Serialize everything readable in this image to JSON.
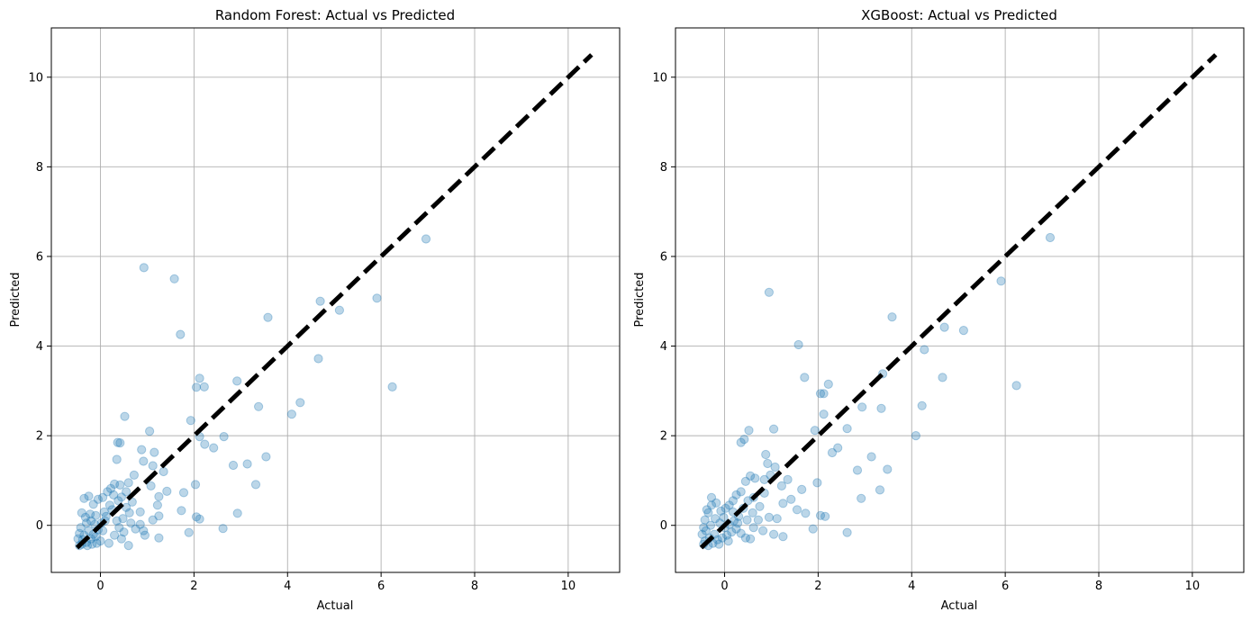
{
  "figure": {
    "marker_color": "#1f77b4",
    "line_color": "#000000",
    "grid": true
  },
  "chart_data": [
    {
      "type": "scatter",
      "title": "Random Forest: Actual vs Predicted",
      "xlabel": "Actual",
      "ylabel": "Predicted",
      "xlim": [
        -1.05,
        11.1
      ],
      "ylim": [
        -1.05,
        11.1
      ],
      "xticks": [
        0,
        2,
        4,
        6,
        8,
        10
      ],
      "yticks": [
        0,
        2,
        4,
        6,
        8,
        10
      ],
      "xtick_labels": [
        "0",
        "2",
        "4",
        "6",
        "8",
        "10"
      ],
      "ytick_labels": [
        "0",
        "2",
        "4",
        "6",
        "8",
        "10"
      ],
      "reference_line": {
        "from": [
          -0.5,
          -0.5
        ],
        "to": [
          10.5,
          10.5
        ],
        "style": "dashed"
      },
      "points": [
        [
          0.93,
          5.75
        ],
        [
          1.58,
          5.5
        ],
        [
          1.71,
          4.26
        ],
        [
          3.58,
          4.64
        ],
        [
          4.7,
          5.0
        ],
        [
          5.11,
          4.8
        ],
        [
          5.91,
          5.07
        ],
        [
          6.96,
          6.39
        ],
        [
          6.24,
          3.09
        ],
        [
          4.66,
          3.72
        ],
        [
          4.27,
          2.74
        ],
        [
          4.09,
          2.48
        ],
        [
          3.38,
          2.65
        ],
        [
          2.92,
          3.22
        ],
        [
          3.54,
          1.53
        ],
        [
          3.14,
          1.37
        ],
        [
          2.84,
          1.34
        ],
        [
          3.32,
          0.91
        ],
        [
          2.93,
          0.27
        ],
        [
          2.62,
          -0.07
        ],
        [
          2.64,
          1.98
        ],
        [
          2.42,
          1.73
        ],
        [
          2.23,
          1.81
        ],
        [
          2.12,
          3.28
        ],
        [
          2.05,
          3.08
        ],
        [
          2.22,
          3.09
        ],
        [
          1.93,
          2.34
        ],
        [
          2.12,
          1.98
        ],
        [
          1.78,
          0.73
        ],
        [
          1.73,
          0.33
        ],
        [
          1.89,
          -0.16
        ],
        [
          2.05,
          0.19
        ],
        [
          2.12,
          0.14
        ],
        [
          2.03,
          0.91
        ],
        [
          1.05,
          2.1
        ],
        [
          0.52,
          2.43
        ],
        [
          0.42,
          1.84
        ],
        [
          0.37,
          1.85
        ],
        [
          0.35,
          1.47
        ],
        [
          0.88,
          1.69
        ],
        [
          0.92,
          1.43
        ],
        [
          1.15,
          1.63
        ],
        [
          1.12,
          1.33
        ],
        [
          1.35,
          1.2
        ],
        [
          1.08,
          0.88
        ],
        [
          1.42,
          0.76
        ],
        [
          1.25,
          0.64
        ],
        [
          1.22,
          0.45
        ],
        [
          1.25,
          0.21
        ],
        [
          1.12,
          0.12
        ],
        [
          1.25,
          -0.28
        ],
        [
          0.95,
          -0.22
        ],
        [
          0.92,
          -0.12
        ],
        [
          0.85,
          0.3
        ],
        [
          0.72,
          1.12
        ],
        [
          0.6,
          0.95
        ],
        [
          0.55,
          0.75
        ],
        [
          0.45,
          0.63
        ],
        [
          0.38,
          0.55
        ],
        [
          0.3,
          0.92
        ],
        [
          0.22,
          0.82
        ],
        [
          0.15,
          0.75
        ],
        [
          0.05,
          0.62
        ],
        [
          -0.05,
          0.58
        ],
        [
          -0.15,
          0.47
        ],
        [
          -0.25,
          0.65
        ],
        [
          -0.35,
          0.6
        ],
        [
          -0.4,
          0.28
        ],
        [
          0.6,
          -0.45
        ],
        [
          0.45,
          -0.3
        ],
        [
          0.3,
          -0.22
        ],
        [
          0.18,
          -0.4
        ],
        [
          0.05,
          -0.12
        ],
        [
          0.12,
          0.2
        ],
        [
          0.25,
          0.35
        ],
        [
          0.35,
          0.1
        ],
        [
          0.48,
          0.15
        ],
        [
          0.65,
          0.05
        ],
        [
          0.75,
          -0.08
        ],
        [
          0.85,
          0.02
        ],
        [
          0.55,
          0.4
        ],
        [
          0.68,
          0.52
        ],
        [
          0.2,
          0.45
        ],
        [
          0.08,
          0.3
        ],
        [
          -0.1,
          0.22
        ],
        [
          -0.2,
          0.1
        ],
        [
          -0.3,
          0.05
        ],
        [
          -0.42,
          -0.05
        ],
        [
          -0.45,
          -0.18
        ],
        [
          -0.48,
          -0.3
        ],
        [
          -0.4,
          -0.42
        ],
        [
          -0.3,
          -0.38
        ],
        [
          -0.2,
          -0.3
        ],
        [
          -0.1,
          -0.25
        ],
        [
          0.0,
          -0.35
        ],
        [
          -0.05,
          -0.1
        ],
        [
          -0.15,
          -0.2
        ],
        [
          -0.25,
          -0.12
        ],
        [
          -0.35,
          -0.22
        ],
        [
          -0.45,
          -0.45
        ],
        [
          -0.38,
          -0.32
        ],
        [
          -0.28,
          -0.45
        ],
        [
          -0.18,
          -0.42
        ],
        [
          -0.08,
          -0.4
        ],
        [
          0.02,
          0.05
        ],
        [
          0.1,
          0.1
        ],
        [
          -0.32,
          0.18
        ],
        [
          -0.22,
          0.25
        ],
        [
          -0.12,
          0.02
        ],
        [
          0.4,
          -0.05
        ],
        [
          0.5,
          -0.15
        ],
        [
          0.28,
          0.68
        ],
        [
          0.42,
          0.9
        ],
        [
          0.62,
          0.28
        ]
      ]
    },
    {
      "type": "scatter",
      "title": "XGBoost: Actual vs Predicted",
      "xlabel": "Actual",
      "ylabel": "Predicted",
      "xlim": [
        -1.05,
        11.1
      ],
      "ylim": [
        -1.05,
        11.1
      ],
      "xticks": [
        0,
        2,
        4,
        6,
        8,
        10
      ],
      "yticks": [
        0,
        2,
        4,
        6,
        8,
        10
      ],
      "xtick_labels": [
        "0",
        "2",
        "4",
        "6",
        "8",
        "10"
      ],
      "ytick_labels": [
        "0",
        "2",
        "4",
        "6",
        "8",
        "10"
      ],
      "reference_line": {
        "from": [
          -0.5,
          -0.5
        ],
        "to": [
          10.5,
          10.5
        ],
        "style": "dashed"
      },
      "points": [
        [
          0.95,
          5.2
        ],
        [
          1.58,
          4.03
        ],
        [
          1.71,
          3.3
        ],
        [
          3.58,
          4.65
        ],
        [
          4.7,
          4.42
        ],
        [
          5.11,
          4.35
        ],
        [
          5.91,
          5.45
        ],
        [
          6.96,
          6.42
        ],
        [
          6.24,
          3.12
        ],
        [
          4.66,
          3.3
        ],
        [
          4.27,
          3.92
        ],
        [
          4.22,
          2.67
        ],
        [
          4.09,
          2.0
        ],
        [
          3.38,
          3.38
        ],
        [
          3.14,
          1.53
        ],
        [
          2.94,
          2.64
        ],
        [
          3.35,
          2.61
        ],
        [
          3.48,
          1.25
        ],
        [
          2.84,
          1.23
        ],
        [
          2.92,
          0.6
        ],
        [
          3.32,
          0.79
        ],
        [
          2.62,
          2.16
        ],
        [
          2.42,
          1.73
        ],
        [
          2.12,
          2.94
        ],
        [
          2.05,
          2.94
        ],
        [
          2.22,
          3.15
        ],
        [
          2.12,
          2.48
        ],
        [
          1.93,
          2.12
        ],
        [
          2.3,
          1.62
        ],
        [
          2.15,
          0.2
        ],
        [
          2.05,
          0.22
        ],
        [
          1.98,
          0.95
        ],
        [
          2.62,
          -0.16
        ],
        [
          1.89,
          -0.08
        ],
        [
          1.73,
          0.27
        ],
        [
          1.65,
          0.8
        ],
        [
          1.42,
          0.58
        ],
        [
          1.22,
          0.88
        ],
        [
          1.25,
          0.49
        ],
        [
          1.05,
          2.15
        ],
        [
          0.52,
          2.12
        ],
        [
          0.42,
          1.92
        ],
        [
          0.35,
          1.85
        ],
        [
          0.88,
          1.58
        ],
        [
          0.92,
          1.38
        ],
        [
          1.08,
          1.3
        ],
        [
          0.98,
          1.12
        ],
        [
          0.85,
          1.02
        ],
        [
          0.65,
          1.05
        ],
        [
          0.55,
          1.1
        ],
        [
          0.45,
          0.98
        ],
        [
          0.35,
          0.75
        ],
        [
          0.25,
          0.68
        ],
        [
          0.18,
          0.55
        ],
        [
          0.1,
          0.45
        ],
        [
          0.02,
          0.38
        ],
        [
          -0.08,
          0.32
        ],
        [
          -0.18,
          0.5
        ],
        [
          -0.28,
          0.45
        ],
        [
          -0.35,
          0.28
        ],
        [
          -0.42,
          0.12
        ],
        [
          -0.45,
          -0.05
        ],
        [
          -0.48,
          -0.2
        ],
        [
          -0.42,
          -0.35
        ],
        [
          -0.35,
          -0.45
        ],
        [
          -0.25,
          -0.4
        ],
        [
          -0.15,
          -0.32
        ],
        [
          -0.05,
          -0.28
        ],
        [
          0.05,
          -0.22
        ],
        [
          0.15,
          -0.15
        ],
        [
          0.25,
          -0.08
        ],
        [
          0.35,
          -0.18
        ],
        [
          0.45,
          -0.28
        ],
        [
          0.55,
          -0.3
        ],
        [
          0.62,
          -0.05
        ],
        [
          0.72,
          0.12
        ],
        [
          0.82,
          -0.12
        ],
        [
          0.95,
          0.18
        ],
        [
          1.05,
          -0.2
        ],
        [
          1.25,
          -0.25
        ],
        [
          1.12,
          0.15
        ],
        [
          0.75,
          0.42
        ],
        [
          0.62,
          0.62
        ],
        [
          0.5,
          0.55
        ],
        [
          0.4,
          0.38
        ],
        [
          0.3,
          0.2
        ],
        [
          0.2,
          0.1
        ],
        [
          0.1,
          0.02
        ],
        [
          0.0,
          -0.05
        ],
        [
          -0.1,
          0.05
        ],
        [
          -0.2,
          0.15
        ],
        [
          -0.3,
          0.0
        ],
        [
          -0.4,
          -0.12
        ],
        [
          -0.22,
          -0.2
        ],
        [
          -0.32,
          -0.28
        ],
        [
          -0.12,
          -0.42
        ],
        [
          -0.02,
          0.18
        ],
        [
          0.08,
          -0.35
        ],
        [
          0.18,
          0.3
        ],
        [
          0.28,
          0.05
        ],
        [
          0.48,
          0.12
        ],
        [
          -0.38,
          0.35
        ],
        [
          -0.45,
          -0.42
        ],
        [
          -0.28,
          0.62
        ],
        [
          0.6,
          0.28
        ],
        [
          0.85,
          0.72
        ],
        [
          1.35,
          1.02
        ],
        [
          1.55,
          0.35
        ]
      ]
    }
  ]
}
